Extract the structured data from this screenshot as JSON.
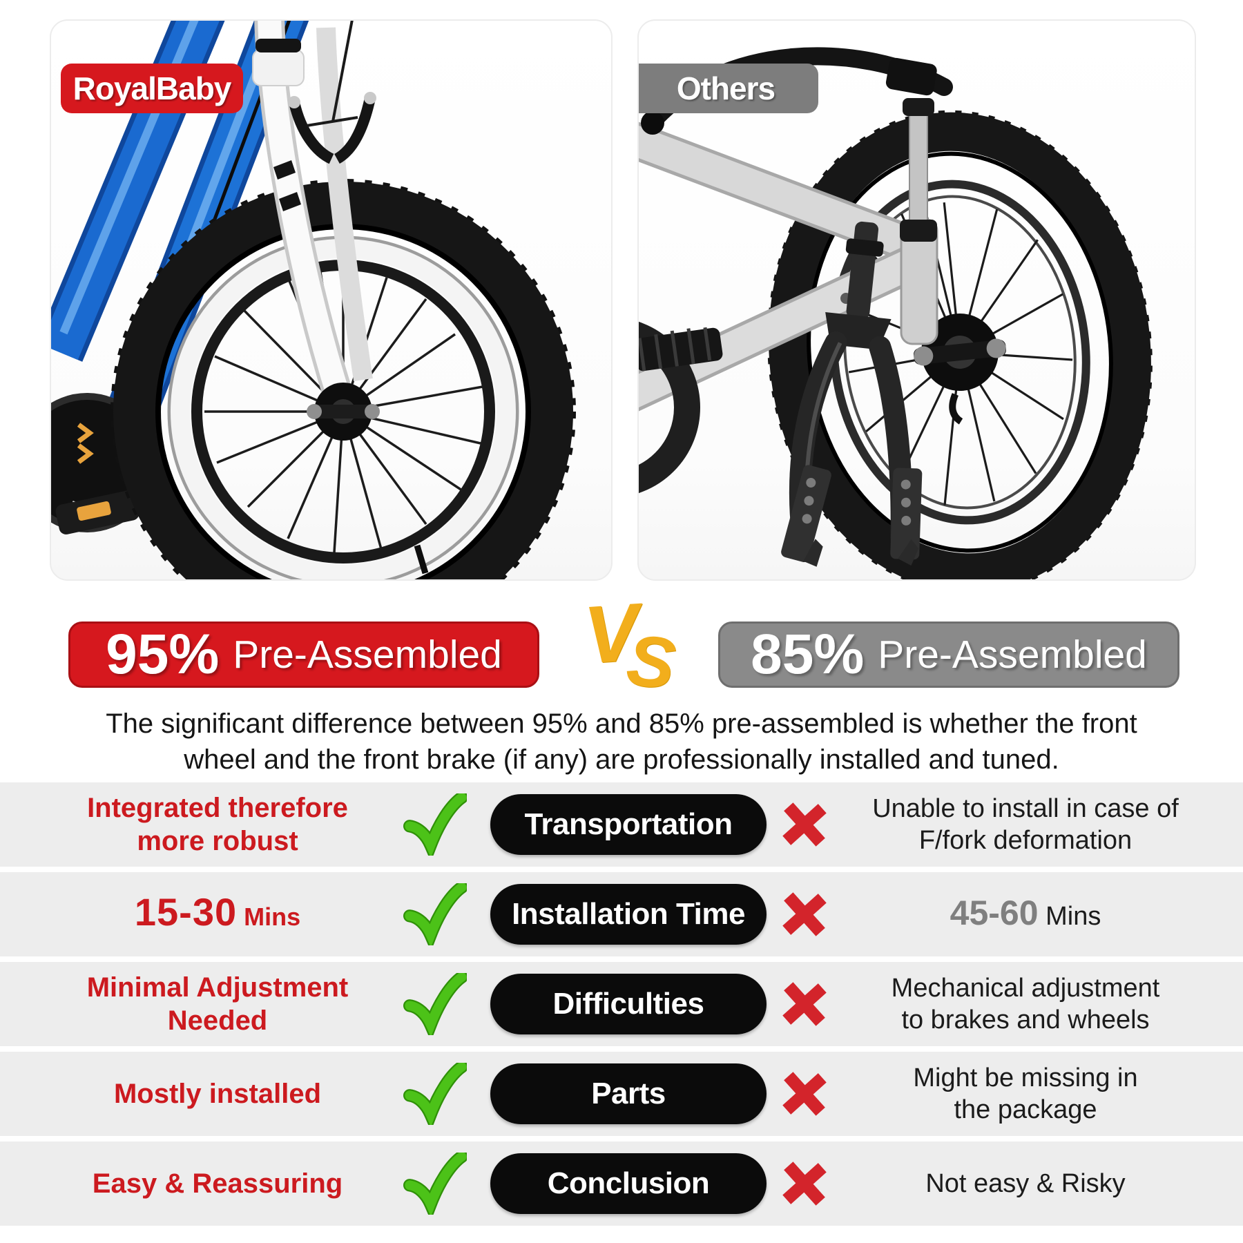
{
  "left_panel": {
    "badge": "RoyalBaby"
  },
  "right_panel": {
    "badge": "Others"
  },
  "banners": {
    "left_percent": "95%",
    "left_label": "Pre-Assembled",
    "vs": "VS",
    "right_percent": "85%",
    "right_label": "Pre-Assembled"
  },
  "description": {
    "line1": "The significant difference between 95% and 85% pre-assembled is whether the front",
    "line2": "wheel and the front brake (if any) are professionally installed and tuned."
  },
  "comparison_table": {
    "rows": [
      {
        "left": {
          "lines": [
            "Integrated therefore",
            "more robust"
          ]
        },
        "category": "Transportation",
        "right": {
          "lines": [
            "Unable to install in case of",
            "F/fork deformation"
          ]
        }
      },
      {
        "left": {
          "big": "15-30",
          "small": "Mins"
        },
        "category": "Installation Time",
        "right": {
          "big": "45-60",
          "small": "Mins"
        }
      },
      {
        "left": {
          "lines": [
            "Minimal Adjustment",
            "Needed"
          ]
        },
        "category": "Difficulties",
        "right": {
          "lines": [
            "Mechanical adjustment",
            "to brakes and wheels"
          ]
        }
      },
      {
        "left": {
          "lines": [
            "Mostly installed"
          ]
        },
        "category": "Parts",
        "right": {
          "lines": [
            "Might be missing in",
            "the package"
          ]
        }
      },
      {
        "left": {
          "lines": [
            "Easy & Reassuring"
          ]
        },
        "category": "Conclusion",
        "right": {
          "lines": [
            "Not easy & Risky"
          ]
        }
      }
    ]
  },
  "colors": {
    "brand_red": "#d6181e",
    "others_badge_gray": "#7d7d7d",
    "others_banner_gray": "#8a8a8a",
    "vs_yellow": "#f2ae1c",
    "check_green": "#4cc218",
    "cross_red": "#d3242b",
    "row_background": "#ededed",
    "accent_text_red": "#cc1a1f"
  }
}
